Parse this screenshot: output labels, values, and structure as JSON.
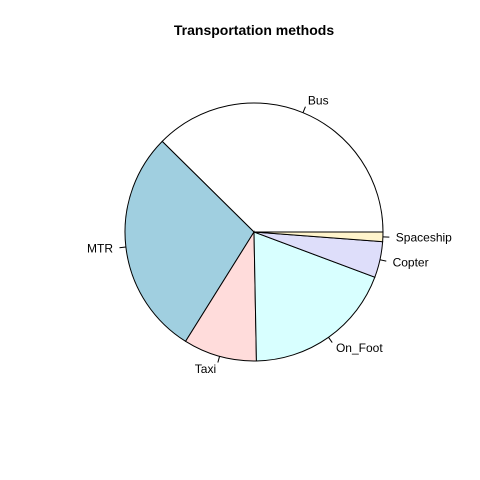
{
  "chart_data": {
    "type": "pie",
    "title": "Transportation methods",
    "start_angle_deg": 0,
    "direction": "counterclockwise",
    "slices": [
      {
        "label": "Bus",
        "value": 37.6,
        "color": "#ffffff"
      },
      {
        "label": "MTR",
        "value": 28.5,
        "color": "#a0cfe0"
      },
      {
        "label": "Taxi",
        "value": 9.2,
        "color": "#ffdcdb"
      },
      {
        "label": "On_Foot",
        "value": 19.0,
        "color": "#d8ffff"
      },
      {
        "label": "Copter",
        "value": 4.5,
        "color": "#dedefa"
      },
      {
        "label": "Spaceship",
        "value": 1.2,
        "color": "#fff4cc"
      }
    ]
  }
}
